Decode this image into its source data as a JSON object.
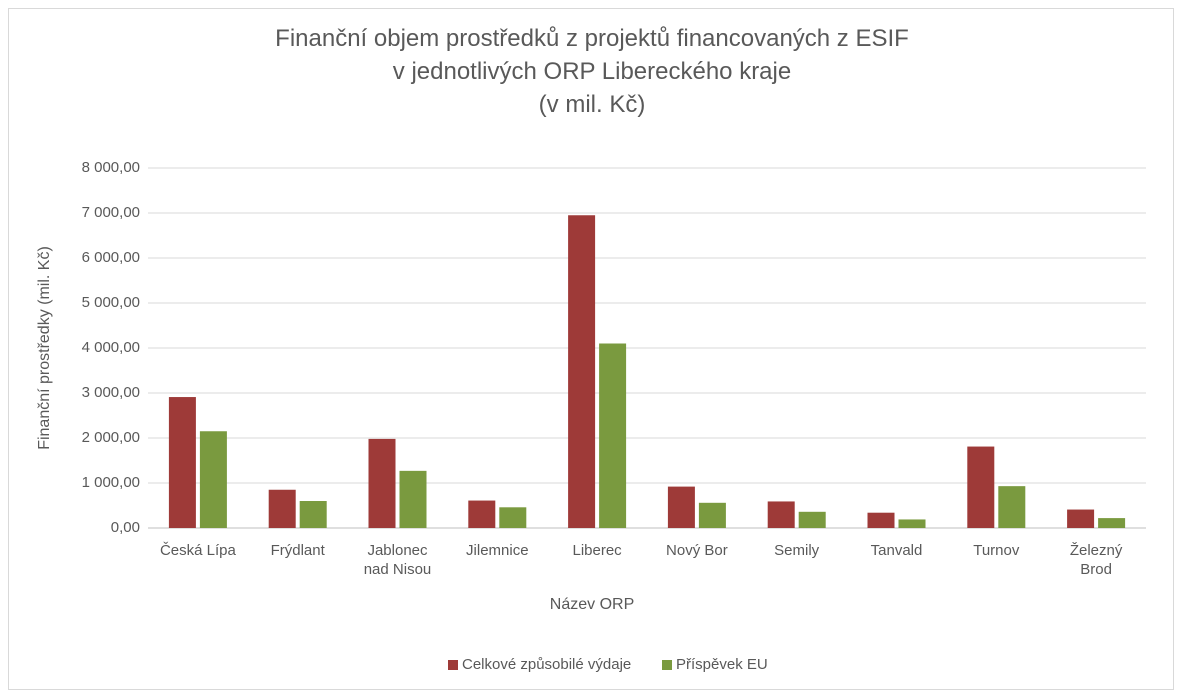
{
  "chart_data": {
    "type": "bar",
    "title": "Finanční objem prostředků z projektů financovaných z ESIF\nv jednotlivých ORP Libereckého kraje\n(v mil. Kč)",
    "x_label": "Název ORP",
    "y_label": "Finanční prostředky (mil. Kč)",
    "categories": [
      "Česká Lípa",
      "Frýdlant",
      "Jablonec\nnad Nisou",
      "Jilemnice",
      "Liberec",
      "Nový Bor",
      "Semily",
      "Tanvald",
      "Turnov",
      "Železný\nBrod"
    ],
    "series": [
      {
        "name": "Celkové způsobilé výdaje",
        "color": "#9e3a38",
        "values": [
          2910,
          850,
          1980,
          610,
          6950,
          920,
          590,
          340,
          1810,
          410
        ]
      },
      {
        "name": "Příspěvek EU",
        "color": "#7a9a3f",
        "values": [
          2150,
          600,
          1270,
          460,
          4100,
          560,
          360,
          190,
          930,
          220
        ]
      }
    ],
    "ylim": [
      0,
      8000
    ],
    "yticks": [
      {
        "value": 0,
        "label": "0,00"
      },
      {
        "value": 1000,
        "label": "1 000,00"
      },
      {
        "value": 2000,
        "label": "2 000,00"
      },
      {
        "value": 3000,
        "label": "3 000,00"
      },
      {
        "value": 4000,
        "label": "4 000,00"
      },
      {
        "value": 5000,
        "label": "5 000,00"
      },
      {
        "value": 6000,
        "label": "6 000,00"
      },
      {
        "value": 7000,
        "label": "7 000,00"
      },
      {
        "value": 8000,
        "label": "8 000,00"
      }
    ],
    "grid": true,
    "legend": "bottom"
  }
}
